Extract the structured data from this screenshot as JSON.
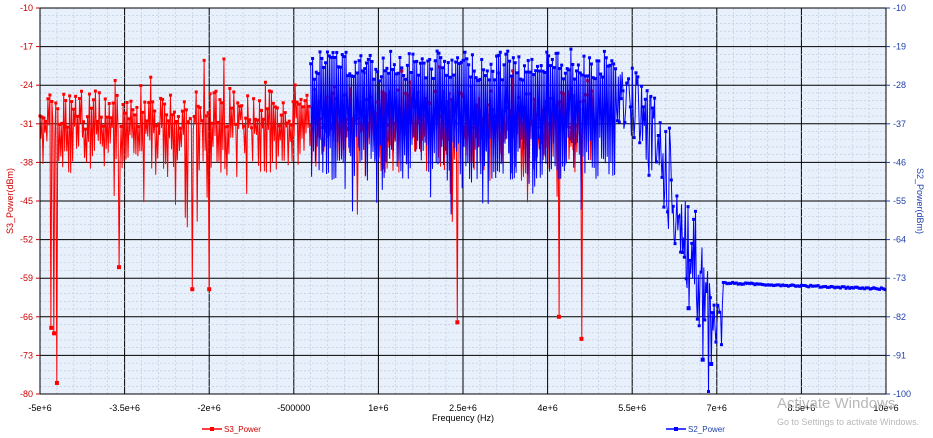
{
  "chart_data": {
    "type": "line",
    "xlabel": "Frequency (Hz)",
    "ylabel_left": "S3_Power(dBm)",
    "ylabel_right": "S2_Power(dBm)",
    "xlim": [
      -5000000,
      10000000
    ],
    "ylim_left": [
      -80,
      -10
    ],
    "ylim_right": [
      -100,
      -10
    ],
    "x_tick_labels": [
      "-5e+6",
      "-3.5e+6",
      "-2e+6",
      "-500000",
      "1e+6",
      "2.5e+6",
      "4e+6",
      "5.5e+6",
      "7e+6",
      "8.5e+6",
      "10e+6"
    ],
    "left_tick_labels": [
      "-10",
      "-17",
      "-24",
      "-31",
      "-38",
      "-45",
      "-52",
      "-59",
      "-66",
      "-73",
      "-80"
    ],
    "right_tick_labels": [
      "-10",
      "-19",
      "-28",
      "-37",
      "-46",
      "-55",
      "-64",
      "-73",
      "-82",
      "-91",
      "-100"
    ],
    "grid": true,
    "legend_position": "bottom",
    "series": [
      {
        "name": "S3_Power",
        "axis": "left",
        "color": "#ff0000",
        "x_range": [
          -5000000,
          4800000
        ],
        "band_dbm": [
          -40,
          -25
        ],
        "peak_dbm": -18,
        "dip_examples": [
          {
            "x": -4800000,
            "y": -68
          },
          {
            "x": -4750000,
            "y": -69
          },
          {
            "x": -4700000,
            "y": -78
          },
          {
            "x": -3600000,
            "y": -57
          },
          {
            "x": -2300000,
            "y": -61
          },
          {
            "x": -2000000,
            "y": -61
          },
          {
            "x": 2400000,
            "y": -67
          },
          {
            "x": 4200000,
            "y": -66
          },
          {
            "x": 4600000,
            "y": -70
          }
        ]
      },
      {
        "name": "S2_Power",
        "axis": "right",
        "color": "#0000ff",
        "x_range": [
          -200000,
          10000000
        ],
        "band_dbm": [
          -50,
          -20
        ],
        "peak_dbm": -19,
        "rolloff_start_x": 5200000,
        "edge_x": 6900000,
        "dip_examples": [
          {
            "x": 6500000,
            "y": -80
          },
          {
            "x": 6750000,
            "y": -92
          },
          {
            "x": 6900000,
            "y": -93
          }
        ],
        "tail_start_dbm": -74,
        "tail_end_dbm": -75.5
      }
    ]
  },
  "watermark": {
    "line1": "Activate Windows",
    "line2": "Go to Settings to activate Windows."
  }
}
